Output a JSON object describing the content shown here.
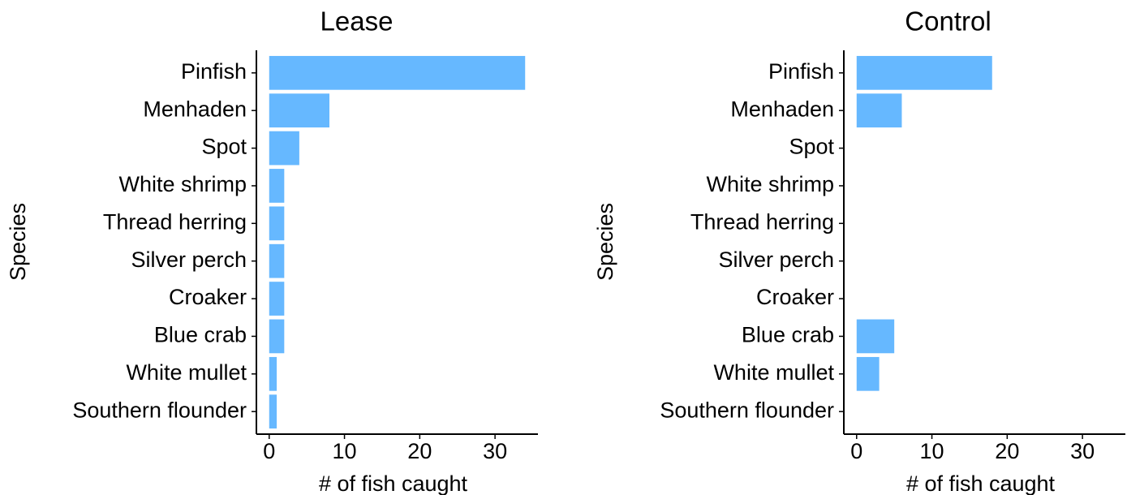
{
  "chart_data": [
    {
      "type": "bar",
      "title": "Lease",
      "xlabel": "# of fish caught",
      "ylabel": "Species",
      "categories": [
        "Pinfish",
        "Menhaden",
        "Spot",
        "White shrimp",
        "Thread herring",
        "Silver perch",
        "Croaker",
        "Blue crab",
        "White mullet",
        "Southern flounder"
      ],
      "values": [
        34,
        8,
        4,
        2,
        2,
        2,
        2,
        2,
        1,
        1
      ],
      "color": "#66b8ff",
      "xlim": [
        -1.7,
        35.7
      ],
      "xticks": [
        0,
        10,
        20,
        30
      ]
    },
    {
      "type": "bar",
      "title": "Control",
      "xlabel": "# of fish caught",
      "ylabel": "Species",
      "categories": [
        "Pinfish",
        "Menhaden",
        "Spot",
        "White shrimp",
        "Thread herring",
        "Silver perch",
        "Croaker",
        "Blue crab",
        "White mullet",
        "Southern flounder"
      ],
      "values": [
        18,
        6,
        0,
        0,
        0,
        0,
        0,
        5,
        3,
        0
      ],
      "color": "#66b8ff",
      "xlim": [
        -1.7,
        35.7
      ],
      "xticks": [
        0,
        10,
        20,
        30
      ]
    }
  ]
}
